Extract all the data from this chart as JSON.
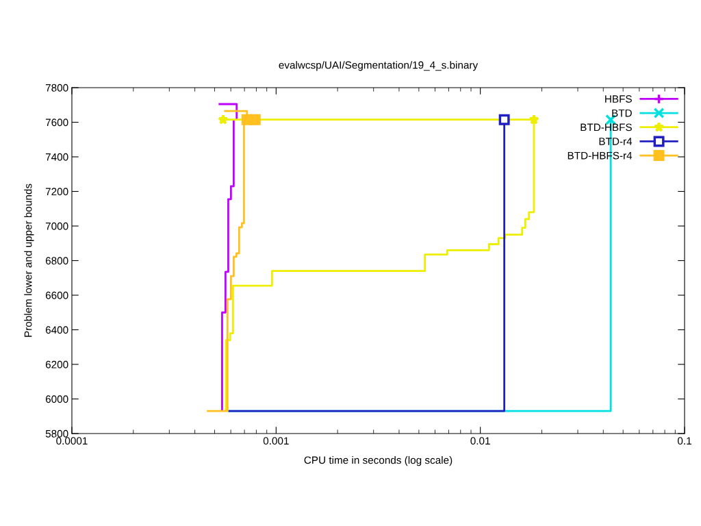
{
  "chart_data": {
    "type": "step",
    "title": "evalwcsp/UAI/Segmentation/19_4_s.binary",
    "xlabel": "CPU time in seconds (log scale)",
    "ylabel": "Problem lower and upper bounds",
    "log": "x",
    "xlim": [
      0.0001,
      0.1
    ],
    "xticks": [
      {
        "value": 0.0001,
        "label": "0.0001"
      },
      {
        "value": 0.001,
        "label": "0.001"
      },
      {
        "value": 0.01,
        "label": "0.01"
      },
      {
        "value": 0.1,
        "label": "0.1"
      }
    ],
    "ylim": [
      5800,
      7800
    ],
    "yticks": [
      5800,
      6000,
      6200,
      6400,
      6600,
      6800,
      7000,
      7200,
      7400,
      7600,
      7800
    ],
    "grid": false,
    "legend": "top right",
    "series": [
      {
        "name": "HBFS",
        "color": "#c000ff",
        "x": [
          0.000544,
          0.000544,
          0.000565,
          0.000583,
          0.000601,
          0.00062,
          null,
          0.000523,
          0.000641,
          0.000641
        ],
        "values": [
          5930,
          6500,
          6735,
          7155,
          7230,
          7615,
          null,
          7705,
          7705,
          7615
        ]
      },
      {
        "name": "BTD",
        "color": "#00e0e0",
        "x": [
          0.000583,
          0.0435
        ],
        "values": [
          5930,
          7615
        ]
      },
      {
        "name": "BTD-HBFS",
        "color": "#eeee00",
        "x": [
          0.000568,
          0.000568,
          0.000596,
          0.000615,
          0.000955,
          0.00535,
          0.00688,
          0.01103,
          0.01228,
          0.01321,
          0.01602,
          0.0166,
          0.0173,
          0.0183,
          null,
          0.00055,
          0.0183
        ],
        "values": [
          5930,
          6340,
          6380,
          6655,
          6740,
          6835,
          6860,
          6895,
          6930,
          6950,
          6990,
          7040,
          7080,
          7615,
          null,
          7615,
          7615
        ]
      },
      {
        "name": "BTD-r4",
        "color": "#2020c0",
        "x": [
          0.000583,
          0.0131
        ],
        "values": [
          5930,
          7615
        ]
      },
      {
        "name": "BTD-HBFS-r4",
        "color": "#ffc020",
        "x": [
          0.000458,
          0.000578,
          0.000601,
          0.00062,
          0.000639,
          0.000659,
          0.00068,
          0.000696,
          null,
          0.000556,
          0.00072,
          0.00072
        ],
        "values": [
          5930,
          6577,
          6710,
          6822,
          6842,
          6993,
          7016,
          7615,
          null,
          7665,
          7665,
          7615
        ]
      },
      {
        "type": "scatter",
        "color": "#c000ff",
        "marker": "cross"
      },
      {
        "type": "scatter",
        "color": "#00e0e0",
        "marker": "x",
        "x": [
          0.0435
        ],
        "values": [
          7615
        ]
      },
      {
        "type": "scatter",
        "color": "#eeee00",
        "marker": "star",
        "x": [
          0.00055,
          0.0183
        ],
        "values": [
          7615,
          7615
        ]
      },
      {
        "type": "scatter",
        "color": "#2020c0",
        "marker": "square_open",
        "x": [
          0.0131
        ],
        "values": [
          7615
        ]
      },
      {
        "type": "scatter",
        "color": "#ffc020",
        "marker": "square",
        "x": [
          0.00072,
          0.00079
        ],
        "values": [
          7615,
          7615
        ]
      }
    ]
  }
}
